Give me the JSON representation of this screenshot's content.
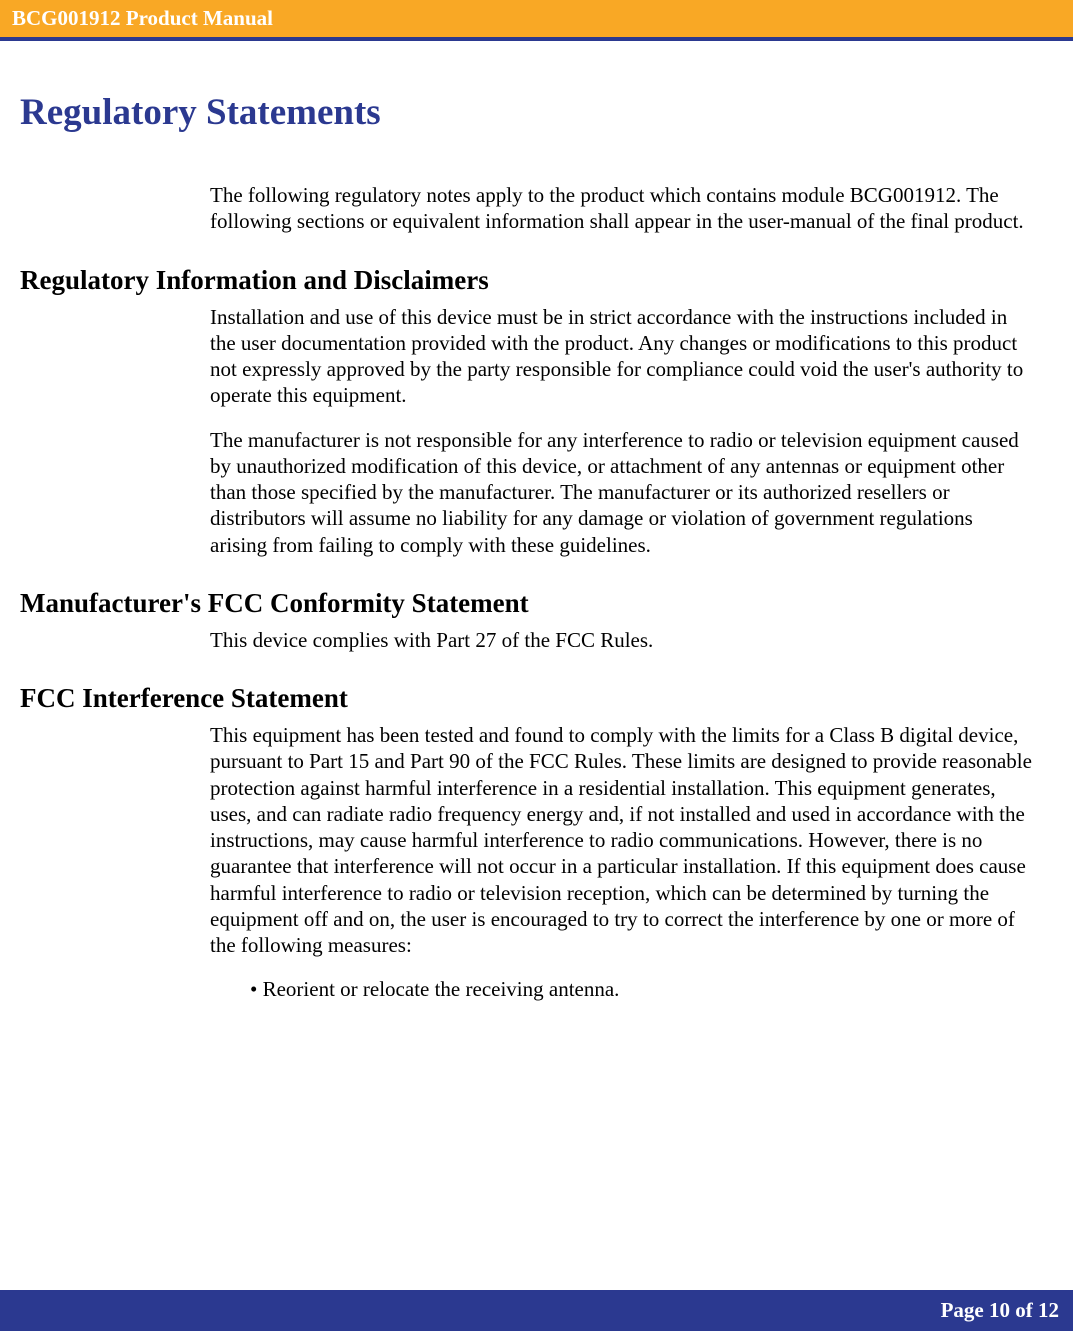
{
  "header": {
    "title": "BCG001912 Product Manual",
    "bg_color": "#f9a825",
    "text_color": "#ffffff",
    "underline_color": "#2b3990"
  },
  "main_heading": {
    "text": "Regulatory Statements",
    "color": "#2b3990",
    "fontsize": 37
  },
  "intro_paragraph": "The following regulatory notes apply to the product which contains module BCG001912.  The following sections or equivalent information shall appear in the user-manual of the final product.",
  "sections": [
    {
      "heading": "Regulatory Information and Disclaimers",
      "paragraphs": [
        "Installation and use of this device must be in strict accordance with the instructions included in the user documentation provided with the product.  Any changes or modifications to this product not expressly approved by the party responsible for compliance could void the user's authority to operate this equipment.",
        "The manufacturer is not responsible for any interference to radio or television equipment caused by unauthorized modification of this device, or attachment of any antennas or equipment other than those specified by the manufacturer.    The manufacturer or its authorized resellers or distributors will assume no liability for any damage or violation of government regulations arising from failing to comply with these guidelines."
      ]
    },
    {
      "heading": "Manufacturer's FCC Conformity Statement",
      "paragraphs": [
        "This device complies with Part 27 of the FCC Rules."
      ]
    },
    {
      "heading": "FCC Interference Statement",
      "paragraphs": [
        "This equipment has been tested and found to comply with the limits for a Class B digital device, pursuant to Part 15 and Part 90 of the FCC Rules.  These limits are designed to provide reasonable protection against harmful interference in a residential installation.  This equipment generates, uses, and can radiate radio frequency energy and, if not installed and used in accordance with the instructions, may cause harmful interference to radio communications.   However, there is no guarantee that interference will not occur in a particular installation.  If this equipment does cause harmful interference to radio or television reception, which can be determined by turning the equipment off and on, the user is encouraged to try to correct the interference by one or more of the following measures:"
      ],
      "bullets": [
        "• Reorient or relocate the receiving antenna."
      ]
    }
  ],
  "footer": {
    "text": "Page 10 of 12",
    "bg_color": "#2b3990",
    "text_color": "#ffffff"
  },
  "typography": {
    "body_fontsize": 21,
    "heading_fontsize": 27,
    "font_family": "Times New Roman"
  }
}
